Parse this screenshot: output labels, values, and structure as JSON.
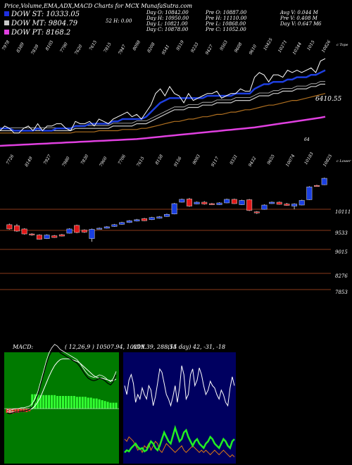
{
  "header": {
    "title": "Price,Volume,EMA,ADX,MACD Charts for MCX  MunafaSutra.com",
    "legend": [
      {
        "label": "DOW ST: 10333.05",
        "color": "#1e2fe0"
      },
      {
        "label": "DOW MT: 9804.79",
        "color": "#c8c8c8"
      },
      {
        "label": "DOW PT: 8168.2",
        "color": "#e040e0"
      }
    ],
    "stats": [
      [
        "Day O: 10842.00",
        "52 H: 0.00",
        "Day H: 10950.00",
        "Day L: 10821.00",
        "Day C: 10878.00"
      ],
      [
        "Pre O: 10887.00",
        "Pre H: 11110.00",
        "Pre L: 10868.00",
        "Pre C: 11052.00"
      ],
      [
        "Avg V: 0.044 M",
        "Pre V: 0.408 M",
        "Day V: 0.647 M"
      ]
    ],
    "stat_extra": "6"
  },
  "colors": {
    "bull": "#1a3fe0",
    "bear": "#e01818",
    "ema_short": "#1e3fe0",
    "ema_mid": "#c8c8c8",
    "ema_long": "#b07020",
    "ema_pt": "#e040e0",
    "price": "#ffffff",
    "level_line": "#8a3a1a",
    "macd_bg": "#007a00",
    "macd_hist_pos": "#33ff33",
    "macd_hist_neg": "#ff3333",
    "adx_bg": "#000060",
    "adx_di_plus": "#22ee22",
    "adx_di_minus": "#e07a10"
  },
  "chart_data": [
    {
      "type": "line",
      "name": "ema_panel",
      "top_labels": [
        "7978",
        "8389",
        "7839",
        "8105",
        "7790",
        "7620",
        "7615",
        "7815",
        "7947",
        "8098",
        "8208",
        "9541",
        "9519",
        "9233",
        "9427",
        "9563",
        "9608",
        "9610",
        "10425",
        "10271",
        "10344",
        "1015",
        "10826"
      ],
      "bottom_labels": [
        "7726",
        "8149",
        "7927",
        "7980",
        "7830",
        "7960",
        "7706",
        "7615",
        "8158",
        "9156",
        "9093",
        "9117",
        "9331",
        "9432",
        "9655",
        "10074",
        "10183",
        "10825"
      ],
      "last_value_label": "6410.55",
      "right_top_tag": "c Tope",
      "right_bottom_tag": "c Lower",
      "marker": "64",
      "price": [
        9.0,
        9.2,
        9.1,
        8.9,
        8.9,
        9.1,
        9.2,
        9.0,
        9.3,
        9.0,
        9.2,
        9.2,
        9.3,
        9.3,
        9.1,
        9.0,
        9.4,
        9.3,
        9.3,
        9.4,
        9.2,
        9.5,
        9.4,
        9.3,
        9.5,
        9.6,
        9.7,
        9.8,
        9.6,
        9.7,
        9.5,
        9.8,
        10.1,
        10.6,
        10.8,
        10.5,
        10.9,
        10.6,
        10.5,
        10.2,
        10.6,
        10.3,
        10.4,
        10.5,
        10.6,
        10.6,
        10.7,
        10.4,
        10.5,
        10.6,
        10.6,
        10.8,
        10.7,
        10.7,
        11.3,
        11.5,
        11.4,
        11.1,
        11.4,
        11.4,
        11.3,
        11.6,
        11.5,
        11.6,
        11.5,
        11.6,
        11.7,
        11.5,
        12.0,
        12.1
      ],
      "ema_short": [
        9.1,
        9.1,
        9.1,
        9.0,
        9.0,
        9.0,
        9.0,
        9.0,
        9.1,
        9.0,
        9.0,
        9.0,
        9.1,
        9.1,
        9.1,
        9.1,
        9.2,
        9.2,
        9.2,
        9.3,
        9.3,
        9.3,
        9.3,
        9.3,
        9.4,
        9.4,
        9.5,
        9.5,
        9.5,
        9.5,
        9.5,
        9.6,
        9.8,
        10.0,
        10.2,
        10.3,
        10.4,
        10.4,
        10.4,
        10.4,
        10.4,
        10.4,
        10.4,
        10.4,
        10.5,
        10.5,
        10.5,
        10.5,
        10.5,
        10.5,
        10.6,
        10.6,
        10.6,
        10.6,
        10.8,
        10.9,
        11.0,
        11.0,
        11.1,
        11.1,
        11.1,
        11.2,
        11.2,
        11.3,
        11.3,
        11.3,
        11.4,
        11.4,
        11.5,
        11.6
      ],
      "ema_mid": [
        9.0,
        9.0,
        9.0,
        9.0,
        9.0,
        9.0,
        9.0,
        9.0,
        9.0,
        9.0,
        9.0,
        9.0,
        9.0,
        9.0,
        9.0,
        9.0,
        9.1,
        9.1,
        9.1,
        9.1,
        9.1,
        9.1,
        9.1,
        9.1,
        9.2,
        9.2,
        9.2,
        9.2,
        9.2,
        9.3,
        9.3,
        9.3,
        9.4,
        9.5,
        9.6,
        9.7,
        9.8,
        9.9,
        9.9,
        9.9,
        10.0,
        10.0,
        10.0,
        10.1,
        10.1,
        10.1,
        10.2,
        10.2,
        10.2,
        10.2,
        10.3,
        10.3,
        10.3,
        10.3,
        10.4,
        10.5,
        10.5,
        10.5,
        10.6,
        10.6,
        10.7,
        10.7,
        10.7,
        10.8,
        10.8,
        10.8,
        10.9,
        10.9,
        11.0,
        11.0
      ],
      "ema_long": [
        8.9,
        8.9,
        8.9,
        8.9,
        8.9,
        8.9,
        8.9,
        8.9,
        8.9,
        8.9,
        8.9,
        8.9,
        8.9,
        8.9,
        8.9,
        8.9,
        8.95,
        8.95,
        8.95,
        8.95,
        8.95,
        9.0,
        9.0,
        9.0,
        9.0,
        9.0,
        9.05,
        9.05,
        9.05,
        9.05,
        9.1,
        9.1,
        9.15,
        9.2,
        9.25,
        9.3,
        9.35,
        9.4,
        9.4,
        9.45,
        9.5,
        9.5,
        9.55,
        9.6,
        9.6,
        9.65,
        9.7,
        9.7,
        9.75,
        9.8,
        9.8,
        9.85,
        9.9,
        9.9,
        9.95,
        10.0,
        10.05,
        10.1,
        10.1,
        10.15,
        10.2,
        10.25,
        10.3,
        10.3,
        10.35,
        10.4,
        10.45,
        10.5,
        10.55,
        10.6
      ],
      "ema_pt": [
        8.35,
        8.36,
        8.37,
        8.38,
        8.39,
        8.4,
        8.41,
        8.42,
        8.43,
        8.44,
        8.45,
        8.46,
        8.47,
        8.48,
        8.49,
        8.5,
        8.51,
        8.52,
        8.53,
        8.54,
        8.55,
        8.56,
        8.57,
        8.58,
        8.59,
        8.6,
        8.61,
        8.62,
        8.63,
        8.64,
        8.66,
        8.68,
        8.7,
        8.72,
        8.74,
        8.76,
        8.78,
        8.8,
        8.82,
        8.84,
        8.86,
        8.88,
        8.9,
        8.92,
        8.94,
        8.96,
        8.98,
        9.0,
        9.02,
        9.04,
        9.06,
        9.08,
        9.1,
        9.12,
        9.14,
        9.17,
        9.2,
        9.23,
        9.26,
        9.29,
        9.32,
        9.35,
        9.38,
        9.41,
        9.44,
        9.47,
        9.5,
        9.53,
        9.56,
        9.6
      ],
      "ylim": [
        7.5,
        12.5
      ]
    },
    {
      "type": "bar",
      "name": "candles",
      "levels": [
        "10111",
        "9533",
        "9015",
        "8276",
        "7853"
      ],
      "candles": [
        {
          "o": 9500,
          "c": 9380,
          "h": 9530,
          "l": 9360
        },
        {
          "o": 9470,
          "c": 9320,
          "h": 9520,
          "l": 9300
        },
        {
          "o": 9380,
          "c": 9240,
          "h": 9400,
          "l": 9220
        },
        {
          "o": 9240,
          "c": 9210,
          "h": 9260,
          "l": 9190
        },
        {
          "o": 9210,
          "c": 9090,
          "h": 9230,
          "l": 9080
        },
        {
          "o": 9110,
          "c": 9210,
          "h": 9230,
          "l": 9100
        },
        {
          "o": 9190,
          "c": 9140,
          "h": 9210,
          "l": 9130
        },
        {
          "o": 9220,
          "c": 9180,
          "h": 9240,
          "l": 9170
        },
        {
          "o": 9260,
          "c": 9380,
          "h": 9400,
          "l": 9250
        },
        {
          "o": 9480,
          "c": 9280,
          "h": 9500,
          "l": 9260
        },
        {
          "o": 9350,
          "c": 9290,
          "h": 9370,
          "l": 9270
        },
        {
          "o": 9110,
          "c": 9370,
          "h": 9390,
          "l": 9020
        },
        {
          "o": 9380,
          "c": 9400,
          "h": 9420,
          "l": 9370
        },
        {
          "o": 9400,
          "c": 9440,
          "h": 9460,
          "l": 9390
        },
        {
          "o": 9450,
          "c": 9500,
          "h": 9520,
          "l": 9440
        },
        {
          "o": 9510,
          "c": 9560,
          "h": 9580,
          "l": 9500
        },
        {
          "o": 9560,
          "c": 9610,
          "h": 9630,
          "l": 9550
        },
        {
          "o": 9600,
          "c": 9640,
          "h": 9660,
          "l": 9590
        },
        {
          "o": 9670,
          "c": 9610,
          "h": 9690,
          "l": 9600
        },
        {
          "o": 9640,
          "c": 9700,
          "h": 9720,
          "l": 9630
        },
        {
          "o": 9680,
          "c": 9720,
          "h": 9740,
          "l": 9670
        },
        {
          "o": 9730,
          "c": 9790,
          "h": 9810,
          "l": 9720
        },
        {
          "o": 9800,
          "c": 10090,
          "h": 10110,
          "l": 9790
        },
        {
          "o": 10130,
          "c": 10210,
          "h": 10230,
          "l": 10120
        },
        {
          "o": 10220,
          "c": 10020,
          "h": 10250,
          "l": 10000
        },
        {
          "o": 10080,
          "c": 10130,
          "h": 10150,
          "l": 10070
        },
        {
          "o": 10130,
          "c": 10080,
          "h": 10160,
          "l": 10060
        },
        {
          "o": 10090,
          "c": 10060,
          "h": 10110,
          "l": 10050
        },
        {
          "o": 10060,
          "c": 10110,
          "h": 10130,
          "l": 10050
        },
        {
          "o": 10110,
          "c": 10210,
          "h": 10230,
          "l": 10100
        },
        {
          "o": 10210,
          "c": 10090,
          "h": 10230,
          "l": 10080
        },
        {
          "o": 10060,
          "c": 10180,
          "h": 10200,
          "l": 10050
        },
        {
          "o": 10200,
          "c": 9900,
          "h": 10220,
          "l": 9880
        },
        {
          "o": 9860,
          "c": 9830,
          "h": 9880,
          "l": 9800
        },
        {
          "o": 9930,
          "c": 10050,
          "h": 10070,
          "l": 9920
        },
        {
          "o": 10090,
          "c": 10130,
          "h": 10150,
          "l": 10080
        },
        {
          "o": 10130,
          "c": 10070,
          "h": 10150,
          "l": 10060
        },
        {
          "o": 10080,
          "c": 10040,
          "h": 10110,
          "l": 10030
        },
        {
          "o": 10020,
          "c": 10080,
          "h": 10100,
          "l": 9930
        },
        {
          "o": 10050,
          "c": 10180,
          "h": 10200,
          "l": 10040
        },
        {
          "o": 10200,
          "c": 10560,
          "h": 10580,
          "l": 10190
        },
        {
          "o": 10600,
          "c": 10580,
          "h": 10620,
          "l": 10570
        },
        {
          "o": 10620,
          "c": 10800,
          "h": 10820,
          "l": 10610
        }
      ],
      "ylim": [
        7700,
        10900
      ]
    },
    {
      "type": "area",
      "name": "macd_panel",
      "title": "MACD:",
      "params": "( 12,26,9 ) 10507.94,  10219.39, 288.55",
      "macd_line": [
        -0.05,
        -0.06,
        -0.05,
        -0.04,
        -0.04,
        -0.03,
        -0.03,
        -0.02,
        -0.01,
        0.02,
        0.08,
        0.16,
        0.28,
        0.4,
        0.52,
        0.62,
        0.68,
        0.72,
        0.7,
        0.66,
        0.64,
        0.62,
        0.6,
        0.58,
        0.56,
        0.54,
        0.5,
        0.45,
        0.4,
        0.36,
        0.34,
        0.33,
        0.34,
        0.36,
        0.35,
        0.33,
        0.3,
        0.28,
        0.32,
        0.4
      ],
      "signal_line": [
        -0.04,
        -0.04,
        -0.04,
        -0.04,
        -0.04,
        -0.03,
        -0.03,
        -0.02,
        -0.01,
        0.0,
        0.03,
        0.08,
        0.14,
        0.22,
        0.3,
        0.38,
        0.45,
        0.51,
        0.55,
        0.58,
        0.59,
        0.59,
        0.59,
        0.58,
        0.57,
        0.56,
        0.54,
        0.51,
        0.48,
        0.45,
        0.42,
        0.39,
        0.37,
        0.36,
        0.36,
        0.35,
        0.34,
        0.33,
        0.33,
        0.35
      ],
      "histogram": [
        -0.05,
        -0.06,
        -0.06,
        -0.05,
        -0.05,
        -0.04,
        -0.04,
        -0.04,
        -0.03,
        0.17,
        0.17,
        0.17,
        0.16,
        0.16,
        0.16,
        0.16,
        0.16,
        0.16,
        0.15,
        0.15,
        0.15,
        0.15,
        0.15,
        0.15,
        0.15,
        0.14,
        0.14,
        0.14,
        0.14,
        0.13,
        0.13,
        0.12,
        0.12,
        0.11,
        0.1,
        0.09,
        0.08,
        0.07,
        0.07,
        0.07
      ],
      "ylim": [
        -1.0,
        1.0
      ]
    },
    {
      "type": "line",
      "name": "adx_panel",
      "title": "ADX",
      "params": "(14 day) 42,  -31,  -18",
      "adx_line": [
        0.7,
        0.62,
        0.75,
        0.8,
        0.72,
        0.55,
        0.62,
        0.58,
        0.68,
        0.62,
        0.58,
        0.7,
        0.66,
        0.52,
        0.6,
        0.72,
        0.85,
        0.82,
        0.72,
        0.62,
        0.58,
        0.52,
        0.6,
        0.7,
        0.55,
        0.68,
        0.88,
        0.8,
        0.58,
        0.62,
        0.8,
        0.85,
        0.7,
        0.75,
        0.86,
        0.8,
        0.7,
        0.62,
        0.66,
        0.74,
        0.7,
        0.68,
        0.62,
        0.58,
        0.66,
        0.62,
        0.55,
        0.52,
        0.68,
        0.78,
        0.7
      ],
      "di_plus": [
        0.1,
        0.12,
        0.11,
        0.14,
        0.16,
        0.18,
        0.15,
        0.13,
        0.14,
        0.11,
        0.12,
        0.16,
        0.2,
        0.18,
        0.14,
        0.12,
        0.16,
        0.22,
        0.28,
        0.24,
        0.2,
        0.18,
        0.25,
        0.32,
        0.26,
        0.2,
        0.22,
        0.28,
        0.3,
        0.24,
        0.2,
        0.16,
        0.2,
        0.22,
        0.18,
        0.16,
        0.14,
        0.18,
        0.2,
        0.24,
        0.22,
        0.18,
        0.16,
        0.14,
        0.18,
        0.22,
        0.2,
        0.16,
        0.14,
        0.2,
        0.22
      ],
      "di_minus": [
        0.22,
        0.2,
        0.24,
        0.22,
        0.2,
        0.16,
        0.12,
        0.14,
        0.1,
        0.16,
        0.14,
        0.18,
        0.12,
        0.16,
        0.2,
        0.18,
        0.12,
        0.1,
        0.14,
        0.18,
        0.16,
        0.14,
        0.12,
        0.1,
        0.12,
        0.14,
        0.16,
        0.12,
        0.1,
        0.12,
        0.14,
        0.16,
        0.14,
        0.12,
        0.1,
        0.12,
        0.1,
        0.12,
        0.1,
        0.08,
        0.1,
        0.12,
        0.1,
        0.08,
        0.1,
        0.12,
        0.1,
        0.08,
        0.06,
        0.08,
        0.06
      ],
      "ylim": [
        0,
        1
      ]
    }
  ]
}
